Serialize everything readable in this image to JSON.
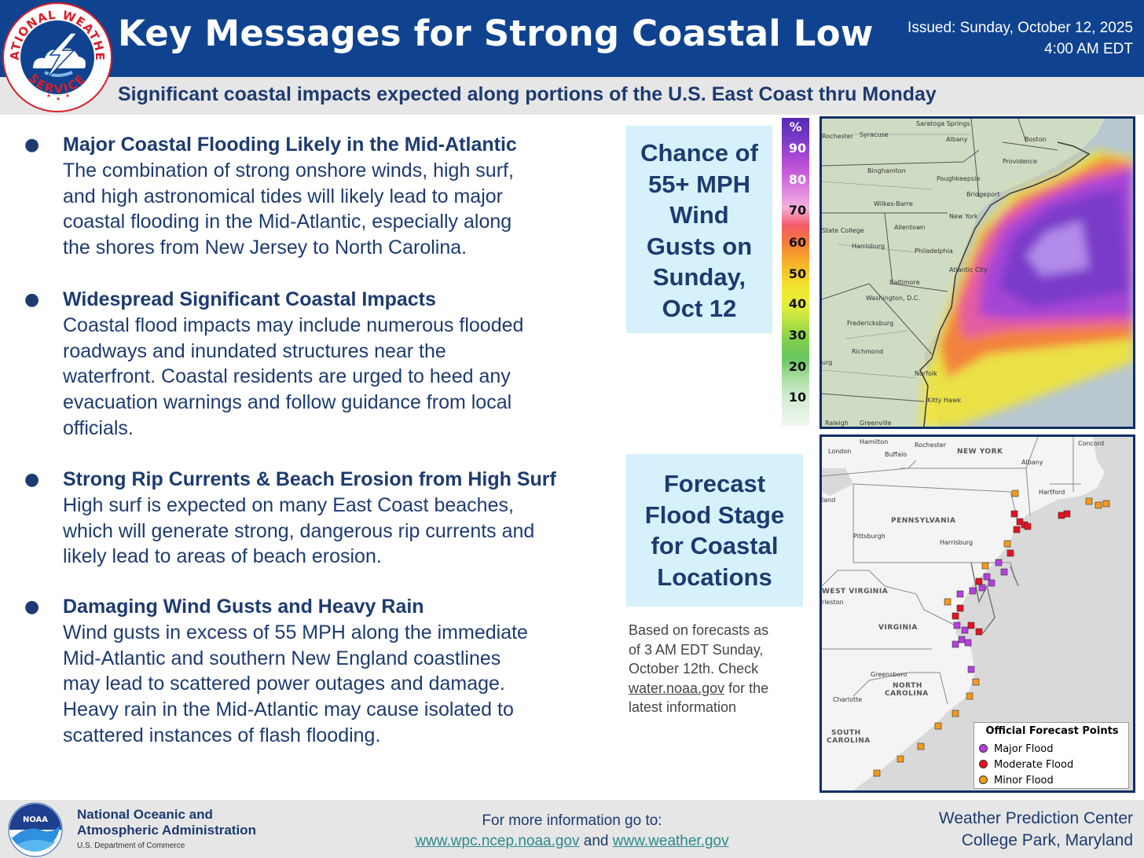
{
  "header": {
    "title": "Key Messages for Strong Coastal Low",
    "issued_line1": "Issued: Sunday, October 12, 2025",
    "issued_line2": "4:00 AM EDT",
    "subtitle": "Significant coastal impacts expected along portions of the U.S. East Coast thru Monday",
    "logo": {
      "top_text": "NATIONAL WEATHER",
      "bottom_text": "SERVICE",
      "icon": "nws-lightning-cloud-logo",
      "color": "#0f4390"
    }
  },
  "messages": [
    {
      "title": "Major Coastal Flooding Likely in the Mid-Atlantic",
      "body": [
        "The combination of strong onshore winds, high surf,",
        "and high astronomical tides will likely lead to major",
        "coastal flooding in the Mid-Atlantic, especially along",
        "the shores from New Jersey to North Carolina."
      ]
    },
    {
      "title": "Widespread Significant Coastal Impacts",
      "body": [
        "Coastal flood impacts may include numerous flooded",
        "roadways and inundated structures near the",
        "waterfront. Coastal residents are urged to heed any",
        "evacuation warnings and follow guidance from local",
        "officials."
      ]
    },
    {
      "title": "Strong Rip Currents & Beach Erosion from High Surf",
      "body": [
        "High surf is expected on many East Coast beaches,",
        "which will generate strong, dangerous rip currents and",
        "likely lead to areas of beach erosion."
      ]
    },
    {
      "title": "Damaging Wind Gusts and Heavy Rain",
      "body": [
        "Wind gusts in excess of 55 MPH along the immediate",
        "Mid-Atlantic and southern New England coastlines",
        "may lead to scattered power outages and damage.",
        "Heavy rain in the Mid-Atlantic may cause isolated to",
        "scattered instances of flash flooding."
      ]
    }
  ],
  "wind_panel": {
    "lines": [
      "Chance of",
      "55+ MPH",
      "Wind",
      "Gusts on",
      "Sunday,",
      "Oct 12"
    ]
  },
  "scale": {
    "unit": "%",
    "ticks": [
      "90",
      "80",
      "70",
      "60",
      "50",
      "40",
      "30",
      "20",
      "10"
    ],
    "tick_colors": [
      "#ffffff",
      "#ffffff",
      "#111111",
      "#111111",
      "#111111",
      "#111111",
      "#111111",
      "#111111",
      "#111111"
    ]
  },
  "wind_map": {
    "cities": [
      "Rochester",
      "Syracuse",
      "Saratoga Springs",
      "Albany",
      "Boston",
      "Binghamton",
      "Poughkeepsie",
      "Providence",
      "Bridgeport",
      "Wilkes-Barre",
      "New York",
      "State College",
      "Allentown",
      "Harrisburg",
      "Philadelphia",
      "Atlantic City",
      "Baltimore",
      "Washington, D.C.",
      "Fredericksburg",
      "Richmond",
      "Norfolk",
      "Kitty Hawk",
      "Raleigh",
      "Greenville",
      "urg"
    ]
  },
  "flood_panel": {
    "lines": [
      "Forecast",
      "Flood Stage",
      "for Coastal",
      "Locations"
    ]
  },
  "note": {
    "line1": "Based on forecasts as",
    "line2": "of 3 AM EDT Sunday,",
    "line3": "October 12th. Check",
    "link": "water.noaa.gov",
    "line4_rest": " for the",
    "line5": "latest information"
  },
  "flood_map": {
    "cities": [
      "London",
      "Hamilton",
      "Buffalo",
      "Rochester",
      "Concord",
      "Albany",
      "Hartford",
      "Pittsburgh",
      "Harrisburg",
      "rleston",
      "Greensboro",
      "Charlotte",
      "land"
    ],
    "states": [
      "NEW YORK",
      "PENNSYLVANIA",
      "WEST VIRGINIA",
      "VIRGINIA",
      "NORTH",
      "CAROLINA",
      "SOUTH",
      "CAROLINA"
    ],
    "legend": {
      "title": "Official Forecast Points",
      "items": [
        {
          "label": "Major Flood",
          "color": "#b53fe0"
        },
        {
          "label": "Moderate Flood",
          "color": "#e8101f"
        },
        {
          "label": "Minor Flood",
          "color": "#f39a1d"
        }
      ]
    }
  },
  "footer": {
    "noaa_logo_text": "NOAA",
    "noaa_line1": "National Oceanic and",
    "noaa_line2": "Atmospheric Administration",
    "noaa_dept": "U.S. Department of Commerce",
    "more_info": "For more information go to:",
    "link1": "www.wpc.ncep.noaa.gov",
    "and": " and ",
    "link2": "www.weather.gov",
    "wpc_line1": "Weather Prediction Center",
    "wpc_line2": "College Park, Maryland"
  }
}
